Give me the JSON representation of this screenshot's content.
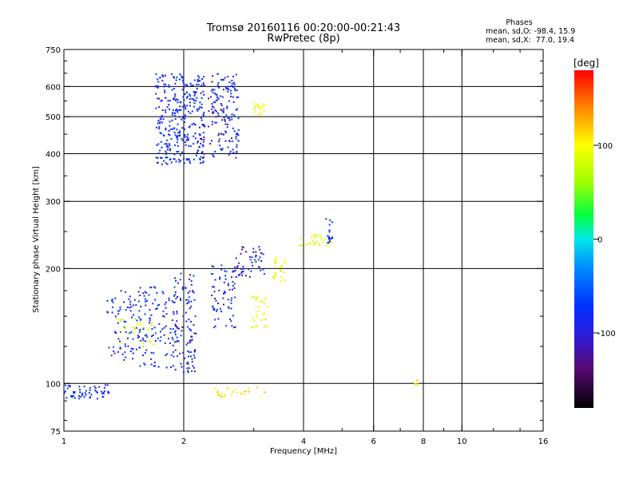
{
  "title_line1": "Tromsø 20160116 00:20:00-00:21:43",
  "title_line2": "RwPretec (8p)",
  "stats": {
    "heading": "Phases",
    "line_o": "mean, sd,O: -98.4, 15.9",
    "line_x": "mean, sd,X:  77.0, 19.4"
  },
  "colorbar": {
    "label": "[deg]",
    "ticks": [
      {
        "value": 100,
        "label": "100"
      },
      {
        "value": 0,
        "label": "0"
      },
      {
        "value": -100,
        "label": "-100"
      }
    ],
    "range": [
      -180,
      180
    ]
  },
  "chart_data": {
    "type": "scatter",
    "title": "Tromsø 20160116 00:20:00-00:21:43",
    "subtitle": "RwPretec (8p)",
    "xlabel": "Frequency [MHz]",
    "ylabel": "Stationary phase Virtual Height [km]",
    "x_scale": "log",
    "y_scale": "log",
    "xlim": [
      1,
      16
    ],
    "ylim": [
      75,
      750
    ],
    "x_ticks": [
      {
        "value": 1,
        "label": "1"
      },
      {
        "value": 2,
        "label": "2"
      },
      {
        "value": 4,
        "label": "4"
      },
      {
        "value": 6,
        "label": "6"
      },
      {
        "value": 8,
        "label": "8"
      },
      {
        "value": 10,
        "label": "10"
      },
      {
        "value": 16,
        "label": "16"
      }
    ],
    "x_minor_ticks": [
      3,
      5,
      7,
      9,
      12,
      14
    ],
    "x_gridlines": [
      2,
      4,
      6,
      8,
      10
    ],
    "y_ticks": [
      {
        "value": 75,
        "label": "75"
      },
      {
        "value": 100,
        "label": "100"
      },
      {
        "value": 200,
        "label": "200"
      },
      {
        "value": 300,
        "label": "300"
      },
      {
        "value": 400,
        "label": "400"
      },
      {
        "value": 500,
        "label": "500"
      },
      {
        "value": 600,
        "label": "600"
      },
      {
        "value": 750,
        "label": "750"
      }
    ],
    "y_minor_ticks": [
      80,
      90,
      125,
      150,
      175,
      250,
      350,
      450,
      550,
      650,
      700
    ],
    "y_gridlines": [
      100,
      200,
      300,
      400,
      500,
      600
    ],
    "grid": true,
    "color_scale": "phase in degrees (-180 black/purple, -100 blue, 0 cyan/green, 100 yellow, 180 red)",
    "clusters": [
      {
        "freq": [
          1.0,
          1.3
        ],
        "height": [
          91,
          99
        ],
        "phase": [
          -110,
          -95
        ],
        "count": 55
      },
      {
        "freq": [
          1.28,
          1.55
        ],
        "height": [
          115,
          175
        ],
        "phase": [
          -125,
          -85
        ],
        "count": 80
      },
      {
        "freq": [
          1.55,
          1.9
        ],
        "height": [
          110,
          180
        ],
        "phase": [
          -125,
          -85
        ],
        "count": 110
      },
      {
        "freq": [
          1.9,
          2.15
        ],
        "height": [
          105,
          195
        ],
        "phase": [
          -140,
          -80
        ],
        "count": 110
      },
      {
        "freq": [
          2.35,
          2.7
        ],
        "height": [
          140,
          205
        ],
        "phase": [
          -130,
          -80
        ],
        "count": 70
      },
      {
        "freq": [
          2.7,
          3.2
        ],
        "height": [
          190,
          230
        ],
        "phase": [
          -150,
          -80
        ],
        "count": 50
      },
      {
        "freq": [
          2.95,
          3.25
        ],
        "height": [
          140,
          170
        ],
        "phase": [
          70,
          110
        ],
        "count": 30
      },
      {
        "freq": [
          3.35,
          3.6
        ],
        "height": [
          185,
          215
        ],
        "phase": [
          70,
          105
        ],
        "count": 25
      },
      {
        "freq": [
          1.35,
          1.7
        ],
        "height": [
          120,
          150
        ],
        "phase": [
          60,
          100
        ],
        "count": 30
      },
      {
        "freq": [
          2.4,
          3.2
        ],
        "height": [
          92,
          98
        ],
        "phase": [
          80,
          130
        ],
        "count": 25
      },
      {
        "freq": [
          3.9,
          4.7
        ],
        "height": [
          228,
          245
        ],
        "phase": [
          60,
          110
        ],
        "count": 30
      },
      {
        "freq": [
          4.55,
          4.75
        ],
        "height": [
          230,
          275
        ],
        "phase": [
          -110,
          -95
        ],
        "count": 18
      },
      {
        "freq": [
          1.7,
          2.25
        ],
        "height": [
          375,
          650
        ],
        "phase": [
          -115,
          -95
        ],
        "count": 320
      },
      {
        "freq": [
          2.35,
          2.75
        ],
        "height": [
          390,
          650
        ],
        "phase": [
          -115,
          -95
        ],
        "count": 130
      },
      {
        "freq": [
          2.2,
          2.7
        ],
        "height": [
          400,
          620
        ],
        "phase": [
          -150,
          -130
        ],
        "count": 30
      },
      {
        "freq": [
          3.0,
          3.2
        ],
        "height": [
          505,
          545
        ],
        "phase": [
          80,
          110
        ],
        "count": 18
      },
      {
        "freq": [
          7.6,
          7.8
        ],
        "height": [
          99,
          102
        ],
        "phase": [
          80,
          130
        ],
        "count": 6
      }
    ]
  }
}
